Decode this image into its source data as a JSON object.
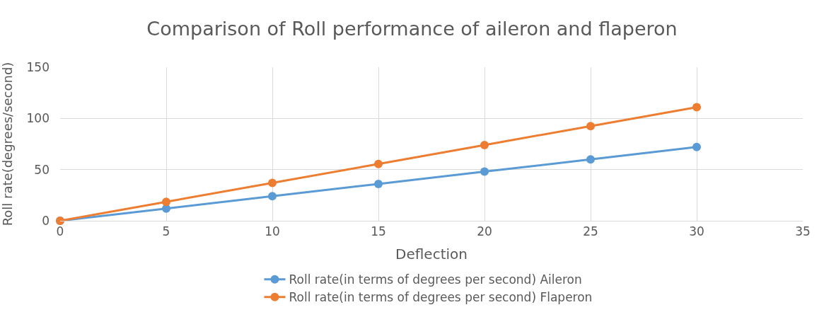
{
  "chart_data": {
    "type": "line",
    "title": "Comparison of Roll performance of aileron and flaperon",
    "xlabel": "Deflection",
    "ylabel": "Roll rate(degrees/second)",
    "x": [
      0,
      5,
      10,
      15,
      20,
      25,
      30
    ],
    "series": [
      {
        "name": "Roll rate(in terms of degrees per second) Aileron",
        "color": "#5b9bd5",
        "values": [
          0,
          12,
          24,
          36,
          48,
          60,
          72
        ]
      },
      {
        "name": "Roll rate(in terms of degrees per second) Flaperon",
        "color": "#ed7d31",
        "values": [
          0,
          18.5,
          37,
          55.5,
          74,
          92.5,
          111
        ]
      }
    ],
    "xlim": [
      0,
      35
    ],
    "xticks": [
      0,
      5,
      10,
      15,
      20,
      25,
      30,
      35
    ],
    "ylim": [
      0,
      150
    ],
    "yticks": [
      0,
      50,
      100,
      150
    ],
    "grid": true,
    "legend": "bottom",
    "marker": "circle",
    "line_style": "solid"
  }
}
